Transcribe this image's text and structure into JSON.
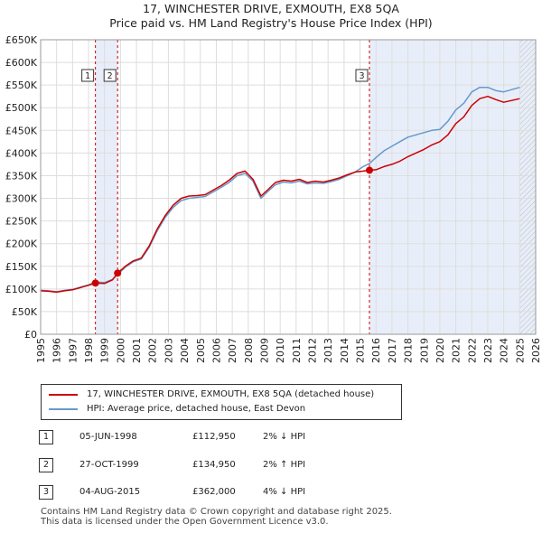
{
  "chart_data": {
    "type": "line",
    "title": "17, WINCHESTER DRIVE, EXMOUTH, EX8 5QA",
    "subtitle": "Price paid vs. HM Land Registry's House Price Index (HPI)",
    "xlabel": "",
    "ylabel": "",
    "xlim": [
      1995,
      2026
    ],
    "ylim": [
      0,
      650000
    ],
    "x_ticks": [
      1995,
      1996,
      1997,
      1998,
      1999,
      2000,
      2001,
      2002,
      2003,
      2004,
      2005,
      2006,
      2007,
      2008,
      2009,
      2010,
      2011,
      2012,
      2013,
      2014,
      2015,
      2016,
      2017,
      2018,
      2019,
      2020,
      2021,
      2022,
      2023,
      2024,
      2025,
      2026
    ],
    "y_ticks": [
      0,
      50000,
      100000,
      150000,
      200000,
      250000,
      300000,
      350000,
      400000,
      450000,
      500000,
      550000,
      600000,
      650000
    ],
    "y_tick_labels": [
      "£0",
      "£50K",
      "£100K",
      "£150K",
      "£200K",
      "£250K",
      "£300K",
      "£350K",
      "£400K",
      "£450K",
      "£500K",
      "£550K",
      "£600K",
      "£650K"
    ],
    "series": [
      {
        "name": "17, WINCHESTER DRIVE, EXMOUTH, EX8 5QA (detached house)",
        "color": "#cc0000",
        "x": [
          1995.0,
          1995.5,
          1996.0,
          1996.5,
          1997.0,
          1997.5,
          1998.0,
          1998.43,
          1999.0,
          1999.5,
          1999.82,
          2000.3,
          2000.8,
          2001.3,
          2001.8,
          2002.3,
          2002.8,
          2003.3,
          2003.8,
          2004.3,
          2004.8,
          2005.3,
          2005.8,
          2006.3,
          2006.8,
          2007.3,
          2007.8,
          2008.3,
          2008.8,
          2009.2,
          2009.7,
          2010.2,
          2010.7,
          2011.2,
          2011.7,
          2012.2,
          2012.7,
          2013.2,
          2013.7,
          2014.2,
          2014.7,
          2015.2,
          2015.59,
          2016.0,
          2016.5,
          2017.0,
          2017.5,
          2018.0,
          2018.5,
          2019.0,
          2019.5,
          2020.0,
          2020.5,
          2021.0,
          2021.5,
          2022.0,
          2022.5,
          2023.0,
          2023.5,
          2024.0,
          2024.5,
          2025.0
        ],
        "y": [
          96000,
          95000,
          93000,
          96000,
          98000,
          103000,
          108000,
          112950,
          112000,
          120000,
          134950,
          150000,
          162000,
          168000,
          195000,
          232000,
          262000,
          285000,
          300000,
          305000,
          306000,
          308000,
          318000,
          328000,
          340000,
          355000,
          360000,
          342000,
          305000,
          318000,
          335000,
          340000,
          338000,
          342000,
          335000,
          338000,
          336000,
          340000,
          345000,
          352000,
          358000,
          360000,
          362000,
          363000,
          370000,
          375000,
          382000,
          392000,
          400000,
          408000,
          418000,
          425000,
          440000,
          465000,
          480000,
          505000,
          520000,
          525000,
          518000,
          512000,
          516000,
          520000
        ]
      },
      {
        "name": "HPI: Average price, detached house, East Devon",
        "color": "#6699cc",
        "x": [
          1995.0,
          1995.5,
          1996.0,
          1996.5,
          1997.0,
          1997.5,
          1998.0,
          1998.43,
          1999.0,
          1999.5,
          1999.82,
          2000.3,
          2000.8,
          2001.3,
          2001.8,
          2002.3,
          2002.8,
          2003.3,
          2003.8,
          2004.3,
          2004.8,
          2005.3,
          2005.8,
          2006.3,
          2006.8,
          2007.3,
          2007.8,
          2008.3,
          2008.8,
          2009.2,
          2009.7,
          2010.2,
          2010.7,
          2011.2,
          2011.7,
          2012.2,
          2012.7,
          2013.2,
          2013.7,
          2014.2,
          2014.7,
          2015.2,
          2015.59,
          2016.0,
          2016.5,
          2017.0,
          2017.5,
          2018.0,
          2018.5,
          2019.0,
          2019.5,
          2020.0,
          2020.5,
          2021.0,
          2021.5,
          2022.0,
          2022.5,
          2023.0,
          2023.5,
          2024.0,
          2024.5,
          2025.0
        ],
        "y": [
          97000,
          96000,
          94000,
          97000,
          99000,
          104000,
          109000,
          115000,
          114000,
          121000,
          132000,
          148000,
          160000,
          166000,
          192000,
          228000,
          258000,
          280000,
          295000,
          300000,
          302000,
          304000,
          314000,
          324000,
          335000,
          350000,
          355000,
          338000,
          300000,
          314000,
          330000,
          336000,
          334000,
          338000,
          332000,
          334000,
          333000,
          337000,
          342000,
          350000,
          358000,
          370000,
          377000,
          390000,
          405000,
          415000,
          425000,
          435000,
          440000,
          445000,
          450000,
          452000,
          470000,
          495000,
          510000,
          535000,
          545000,
          545000,
          538000,
          535000,
          540000,
          545000
        ]
      }
    ],
    "sales": [
      {
        "label": "1",
        "date": "05-JUN-1998",
        "x": 1998.43,
        "price": 112950,
        "price_text": "£112,950",
        "hpi": "2% ↓ HPI"
      },
      {
        "label": "2",
        "date": "27-OCT-1999",
        "x": 1999.82,
        "price": 134950,
        "price_text": "£134,950",
        "hpi": "2% ↑ HPI"
      },
      {
        "label": "3",
        "date": "04-AUG-2015",
        "x": 2015.59,
        "price": 362000,
        "price_text": "£362,000",
        "hpi": "4% ↓ HPI"
      }
    ],
    "shaded_ranges": [
      [
        1998.43,
        1999.82
      ],
      [
        2015.59,
        2026
      ]
    ],
    "forecast_from": 2025.0
  },
  "legend": {
    "property_label": "17, WINCHESTER DRIVE, EXMOUTH, EX8 5QA (detached house)",
    "hpi_label": "HPI: Average price, detached house, East Devon",
    "property_color": "#cc0000",
    "hpi_color": "#6699cc"
  },
  "footer": {
    "line1": "Contains HM Land Registry data © Crown copyright and database right 2025.",
    "line2": "This data is licensed under the Open Government Licence v3.0."
  }
}
